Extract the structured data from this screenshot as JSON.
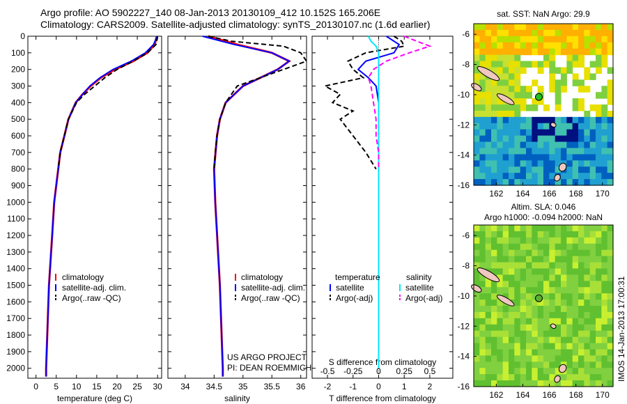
{
  "header": {
    "title_line1": "Argo profile: AO 5902227_140 08-Jan-2013 20130109_412 10.152S 165.206E",
    "title_line2": "Climatology: CARS2009. Satellite-adjusted climatology: synTS_20130107.nc (1.6d earlier)"
  },
  "colors": {
    "climatology": "#ff0000",
    "satellite": "#0000ff",
    "argo": "#000000",
    "salinity_sat": "#00e5ff",
    "salinity_argo": "#ff00ff"
  },
  "chart_data": [
    {
      "type": "line",
      "xlabel": "temperature (deg C)",
      "xlim": [
        -2,
        31
      ],
      "xticks": [
        0,
        5,
        10,
        15,
        20,
        25,
        30
      ],
      "ylim": [
        0,
        2060
      ],
      "yticks": [
        0,
        100,
        200,
        300,
        400,
        500,
        600,
        700,
        800,
        900,
        1000,
        1100,
        1200,
        1300,
        1400,
        1500,
        1600,
        1700,
        1800,
        1900,
        2000
      ],
      "legend": [
        "climatology",
        "satellite-adj. clim.",
        "Argo(..raw -QC)"
      ],
      "series": [
        {
          "name": "climatology",
          "depth": [
            0,
            50,
            100,
            150,
            200,
            250,
            300,
            350,
            400,
            500,
            600,
            700,
            800,
            1000,
            1200,
            1500,
            2000,
            2050
          ],
          "values": [
            29.8,
            29.3,
            27.5,
            24,
            19.5,
            16,
            13.5,
            11.5,
            9.8,
            8,
            7,
            6,
            5.5,
            4.5,
            4,
            3.2,
            2.5,
            2.5
          ]
        },
        {
          "name": "satellite-adj. clim.",
          "depth": [
            0,
            50,
            100,
            150,
            200,
            250,
            300,
            350,
            400,
            500,
            600,
            700,
            800,
            1000,
            1200,
            1500,
            2000,
            2050
          ],
          "values": [
            29.9,
            29,
            27,
            23.5,
            19,
            15.8,
            13.3,
            11.5,
            9.8,
            8,
            7,
            6,
            5.5,
            4.5,
            4,
            3.2,
            2.5,
            2.5
          ]
        },
        {
          "name": "Argo(..raw -QC)",
          "depth": [
            0,
            50,
            100,
            150,
            200,
            250,
            300,
            350,
            400,
            450,
            500,
            600,
            700,
            800
          ],
          "values": [
            30,
            29.6,
            27.5,
            24,
            20,
            17,
            14.5,
            12,
            10,
            9,
            8,
            7,
            6,
            5.5
          ]
        }
      ]
    },
    {
      "type": "line",
      "xlabel": "salinity",
      "xlim": [
        33.7,
        36.1
      ],
      "xticks": [
        34,
        34.5,
        35,
        35.5,
        36
      ],
      "ylim": [
        0,
        2060
      ],
      "legend": [
        "climatology",
        "satellite-adj. clim.",
        "Argo(..raw -QC)"
      ],
      "annotation": [
        "US ARGO PROJECT",
        "PI: DEAN ROEMMICH"
      ],
      "series": [
        {
          "name": "climatology",
          "depth": [
            0,
            50,
            100,
            150,
            200,
            250,
            300,
            400,
            500,
            600,
            800,
            1000,
            1500,
            2000,
            2050
          ],
          "values": [
            34.4,
            34.9,
            35.5,
            35.8,
            35.6,
            35.3,
            35.0,
            34.7,
            34.6,
            34.55,
            34.5,
            34.52,
            34.6,
            34.65,
            34.65
          ]
        },
        {
          "name": "satellite-adj. clim.",
          "depth": [
            0,
            50,
            100,
            150,
            200,
            250,
            300,
            400,
            500,
            600,
            800,
            1000,
            1500,
            2000,
            2050
          ],
          "values": [
            34.3,
            34.85,
            35.5,
            35.8,
            35.6,
            35.3,
            35.0,
            34.7,
            34.6,
            34.55,
            34.5,
            34.52,
            34.6,
            34.65,
            34.65
          ]
        },
        {
          "name": "Argo(..raw -QC)",
          "depth": [
            0,
            30,
            60,
            100,
            150,
            200,
            250,
            300,
            400,
            500,
            600,
            700,
            800
          ],
          "values": [
            34.4,
            34.8,
            35.7,
            36.0,
            36.1,
            35.7,
            35.3,
            34.9,
            34.7,
            34.6,
            34.55,
            34.52,
            34.5
          ]
        }
      ]
    },
    {
      "type": "line",
      "xlabel": "T difference from climatology",
      "xlabel_top": "S difference from climatology",
      "xlim": [
        -2.6,
        2.9
      ],
      "xticks": [
        -2,
        -1,
        0,
        1,
        2
      ],
      "xticks_top": [
        "-0.5",
        "-0.25",
        "0",
        "0.25",
        "0.5"
      ],
      "ylim": [
        0,
        2060
      ],
      "legend_temperature": {
        "title": "temperature",
        "items": [
          "satellite",
          "Argo(-adj)"
        ]
      },
      "legend_salinity": {
        "title": "salinity",
        "items": [
          "satellite",
          "Argo(-adj)"
        ]
      },
      "series": [
        {
          "name": "temperature satellite",
          "depth": [
            0,
            50,
            100,
            150,
            200,
            250,
            300,
            400,
            500,
            700,
            1000,
            2000
          ],
          "values": [
            0.3,
            0.8,
            0.6,
            -0.5,
            -0.8,
            -0.4,
            -0.1,
            0,
            0,
            0,
            0,
            0
          ]
        },
        {
          "name": "temperature Argo(-adj)",
          "depth": [
            0,
            30,
            60,
            100,
            150,
            200,
            250,
            300,
            350,
            400,
            450,
            500,
            600,
            700,
            800
          ],
          "values": [
            0.6,
            0.9,
            1.0,
            -0.5,
            -1.2,
            -1.0,
            -0.6,
            -2.1,
            -1.5,
            -1.8,
            -1.0,
            -1.5,
            -1.0,
            -0.5,
            -0.1
          ]
        },
        {
          "name": "salinity satellite",
          "depth": [
            0,
            30,
            60,
            100,
            200,
            300,
            500,
            1000,
            2000
          ],
          "values": [
            -0.4,
            -0.3,
            -0.1,
            0,
            0,
            0,
            0,
            0,
            0
          ]
        },
        {
          "name": "salinity Argo(-adj)",
          "depth": [
            0,
            30,
            60,
            100,
            150,
            200,
            250,
            300,
            400,
            500,
            600,
            700,
            800
          ],
          "values": [
            1.0,
            1.5,
            2.0,
            1.2,
            0.3,
            -0.2,
            -0.4,
            -0.3,
            -0.2,
            -0.1,
            -0.1,
            0,
            0
          ]
        }
      ]
    },
    {
      "type": "heatmap",
      "title": "sat. SST: NaN Argo: 29.9",
      "xticks": [
        162,
        164,
        166,
        168,
        170
      ],
      "yticks": [
        -6,
        -8,
        -10,
        -12,
        -14,
        -16
      ],
      "xlim": [
        160.3,
        170.8
      ],
      "ylim": [
        -16,
        -5.3
      ]
    },
    {
      "type": "heatmap",
      "title_line1": "Altim. SLA: 0.046",
      "title_line2": "Argo h1000: -0.094 h2000: NaN",
      "xticks": [
        162,
        164,
        166,
        168,
        170
      ],
      "yticks": [
        -6,
        -8,
        -10,
        -12,
        -14,
        -16
      ],
      "xlim": [
        160.3,
        170.8
      ],
      "ylim": [
        -16,
        -5.3
      ]
    }
  ],
  "stamp": "IMOS 14-Jan-2013 17:00:31",
  "argo_position": {
    "lon": 165.206,
    "lat": -10.152
  }
}
